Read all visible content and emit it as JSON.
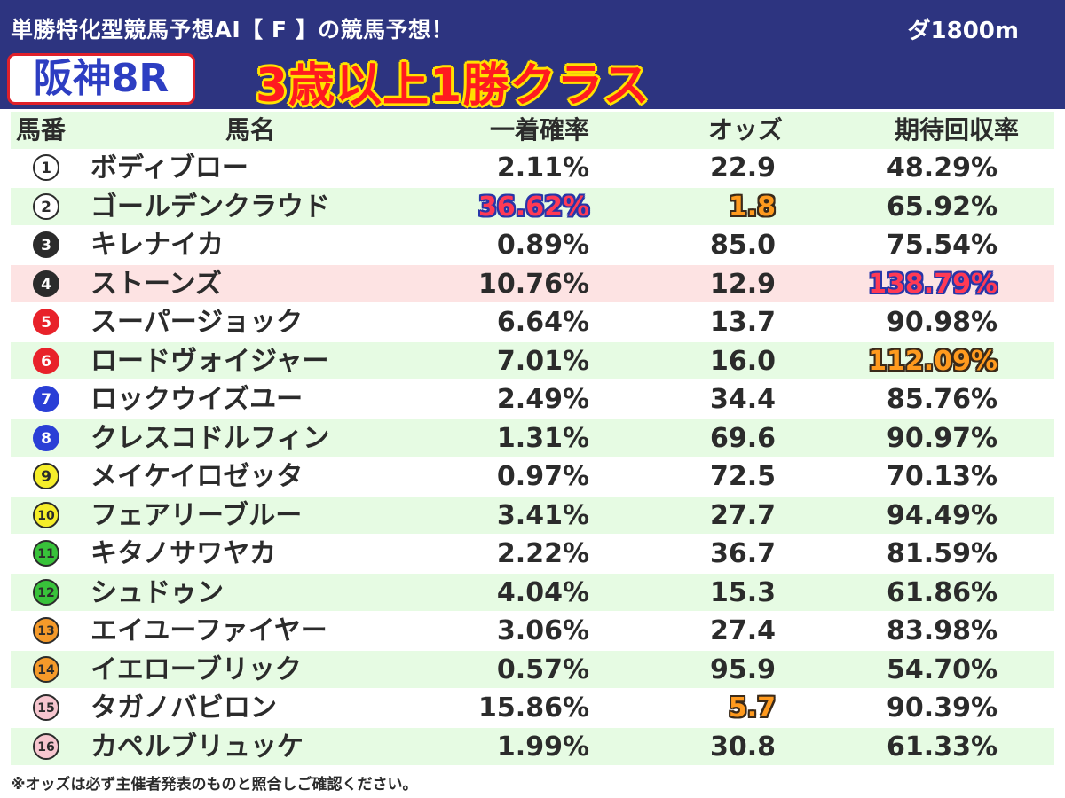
{
  "header": {
    "subtitle": "単勝特化型競馬予想AI【 F 】の競馬予想！",
    "distance": "ダ1800m",
    "race_name": "阪神8R",
    "race_class": "3歳以上1勝クラス"
  },
  "columns": {
    "number": "馬番",
    "name": "馬名",
    "win_prob": "一着確率",
    "odds": "オッズ",
    "expected_return": "期待回収率"
  },
  "colors": {
    "header_bg": "#2d3480",
    "race_name": "#2d3ec2",
    "race_class": "#ff1a20",
    "row_stripe": "#e6fbe3",
    "row_highlight": "#fde3e3"
  },
  "rows": [
    {
      "num": "1",
      "name": "ボディブロー",
      "prob": "2.11%",
      "odds": "22.9",
      "ret": "48.29%",
      "badge_bg": "#ffffff",
      "badge_fg": "#2b2b2b",
      "badge_border": "#2b2b2b"
    },
    {
      "num": "2",
      "name": "ゴールデンクラウド",
      "prob": "36.62%",
      "odds": "1.8",
      "ret": "65.92%",
      "badge_bg": "#ffffff",
      "badge_fg": "#2b2b2b",
      "badge_border": "#2b2b2b",
      "prob_mark": "blue",
      "odds_mark": "orange"
    },
    {
      "num": "3",
      "name": "キレナイカ",
      "prob": "0.89%",
      "odds": "85.0",
      "ret": "75.54%",
      "badge_bg": "#2b2b2b",
      "badge_fg": "#ffffff",
      "badge_border": "#2b2b2b"
    },
    {
      "num": "4",
      "name": "ストーンズ",
      "prob": "10.76%",
      "odds": "12.9",
      "ret": "138.79%",
      "badge_bg": "#2b2b2b",
      "badge_fg": "#ffffff",
      "badge_border": "#2b2b2b",
      "ret_mark": "blue",
      "highlight": true
    },
    {
      "num": "5",
      "name": "スーパージョック",
      "prob": "6.64%",
      "odds": "13.7",
      "ret": "90.98%",
      "badge_bg": "#e8222a",
      "badge_fg": "#ffffff",
      "badge_border": "#e8222a"
    },
    {
      "num": "6",
      "name": "ロードヴォイジャー",
      "prob": "7.01%",
      "odds": "16.0",
      "ret": "112.09%",
      "badge_bg": "#e8222a",
      "badge_fg": "#ffffff",
      "badge_border": "#e8222a",
      "ret_mark": "orange"
    },
    {
      "num": "7",
      "name": "ロックウイズユー",
      "prob": "2.49%",
      "odds": "34.4",
      "ret": "85.76%",
      "badge_bg": "#2a3fd6",
      "badge_fg": "#ffffff",
      "badge_border": "#2a3fd6"
    },
    {
      "num": "8",
      "name": "クレスコドルフィン",
      "prob": "1.31%",
      "odds": "69.6",
      "ret": "90.97%",
      "badge_bg": "#2a3fd6",
      "badge_fg": "#ffffff",
      "badge_border": "#2a3fd6"
    },
    {
      "num": "9",
      "name": "メイケイロゼッタ",
      "prob": "0.97%",
      "odds": "72.5",
      "ret": "70.13%",
      "badge_bg": "#f6ee2a",
      "badge_fg": "#2b2b2b",
      "badge_border": "#2b2b2b"
    },
    {
      "num": "10",
      "name": "フェアリーブルー",
      "prob": "3.41%",
      "odds": "27.7",
      "ret": "94.49%",
      "badge_bg": "#f6ee2a",
      "badge_fg": "#2b2b2b",
      "badge_border": "#2b2b2b"
    },
    {
      "num": "11",
      "name": "キタノサワヤカ",
      "prob": "2.22%",
      "odds": "36.7",
      "ret": "81.59%",
      "badge_bg": "#38c23a",
      "badge_fg": "#2b2b2b",
      "badge_border": "#2b2b2b"
    },
    {
      "num": "12",
      "name": "シュドゥン",
      "prob": "4.04%",
      "odds": "15.3",
      "ret": "61.86%",
      "badge_bg": "#38c23a",
      "badge_fg": "#2b2b2b",
      "badge_border": "#2b2b2b"
    },
    {
      "num": "13",
      "name": "エイユーファイヤー",
      "prob": "3.06%",
      "odds": "27.4",
      "ret": "83.98%",
      "badge_bg": "#f59a2a",
      "badge_fg": "#2b2b2b",
      "badge_border": "#2b2b2b"
    },
    {
      "num": "14",
      "name": "イエローブリック",
      "prob": "0.57%",
      "odds": "95.9",
      "ret": "54.70%",
      "badge_bg": "#f59a2a",
      "badge_fg": "#2b2b2b",
      "badge_border": "#2b2b2b"
    },
    {
      "num": "15",
      "name": "タガノバビロン",
      "prob": "15.86%",
      "odds": "5.7",
      "ret": "90.39%",
      "badge_bg": "#f7c6cf",
      "badge_fg": "#2b2b2b",
      "badge_border": "#2b2b2b",
      "odds_mark": "orange"
    },
    {
      "num": "16",
      "name": "カペルブリュッケ",
      "prob": "1.99%",
      "odds": "30.8",
      "ret": "61.33%",
      "badge_bg": "#f7c6cf",
      "badge_fg": "#2b2b2b",
      "badge_border": "#2b2b2b"
    }
  ],
  "footnote": "※オッズは必ず主催者発表のものと照合しご確認ください。"
}
